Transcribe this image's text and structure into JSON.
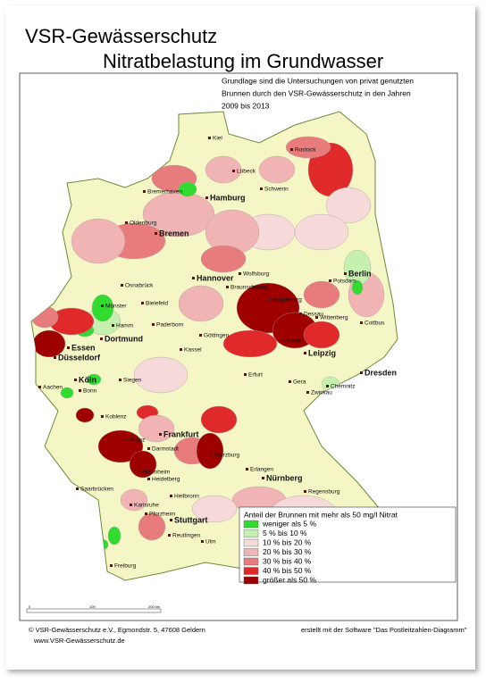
{
  "title": "VSR-Gewässerschutz",
  "subtitle": "Nitratbelastung im Grundwasser",
  "note": [
    "Grundlage sind die Untersuchungen von privat genutzten",
    "Brunnen durch den VSR-Gewässerschutz in den Jahren",
    "2009 bis 2013"
  ],
  "legend": {
    "title": "Anteil der Brunnen mit mehr als 50 mg/l Nitrat",
    "items": [
      {
        "label": "weniger als 5 %",
        "color": "#2fdc2f"
      },
      {
        "label": "5 % bis 10 %",
        "color": "#c6f0b0"
      },
      {
        "label": "10 % bis 20 %",
        "color": "#f6dada"
      },
      {
        "label": "20 % bis 30 %",
        "color": "#f0b4b4"
      },
      {
        "label": "30 % bis 40 %",
        "color": "#e87c7c"
      },
      {
        "label": "40 % bis 50 %",
        "color": "#e02a2a"
      },
      {
        "label": "größer als 50 %",
        "color": "#9e0000"
      }
    ]
  },
  "cities": [
    "Kiel",
    "Rostock",
    "Lübeck",
    "Bremerhaven",
    "Hamburg",
    "Schwerin",
    "Oldenburg",
    "Bremen",
    "Berlin",
    "Potsdam",
    "Hannover",
    "Wolfsburg",
    "Braunschweig",
    "Magdeburg",
    "Dessau",
    "Wittenberg",
    "Cottbus",
    "Osnabrück",
    "Münster",
    "Bielefeld",
    "Hamm",
    "Dortmund",
    "Paderborn",
    "Essen",
    "Düsseldorf",
    "Göttingen",
    "Kassel",
    "Halle",
    "Leipzig",
    "Dresden",
    "Erfurt",
    "Gera",
    "Chemnitz",
    "Zwickau",
    "Aachen",
    "Köln",
    "Bonn",
    "Siegen",
    "Koblenz",
    "Frankfurt",
    "Mainz",
    "Darmstadt",
    "Würzburg",
    "Erlangen",
    "Nürnberg",
    "Mannheim",
    "Heidelberg",
    "Saarbrücken",
    "Regensburg",
    "Karlsruhe",
    "Heilbronn",
    "Pforzheim",
    "Stuttgart",
    "Reutlingen",
    "Ulm",
    "Freiburg"
  ],
  "scale": [
    "0",
    "100",
    "200 km"
  ],
  "footer": {
    "address": "© VSR-Gewässerschutz e.V., Egmondstr. 5, 47608 Geldern",
    "web": "www.VSR-Gewässerschutz.de",
    "software": "erstellt mit der Software \"Das Postleitzahlen-Diagramm\""
  }
}
